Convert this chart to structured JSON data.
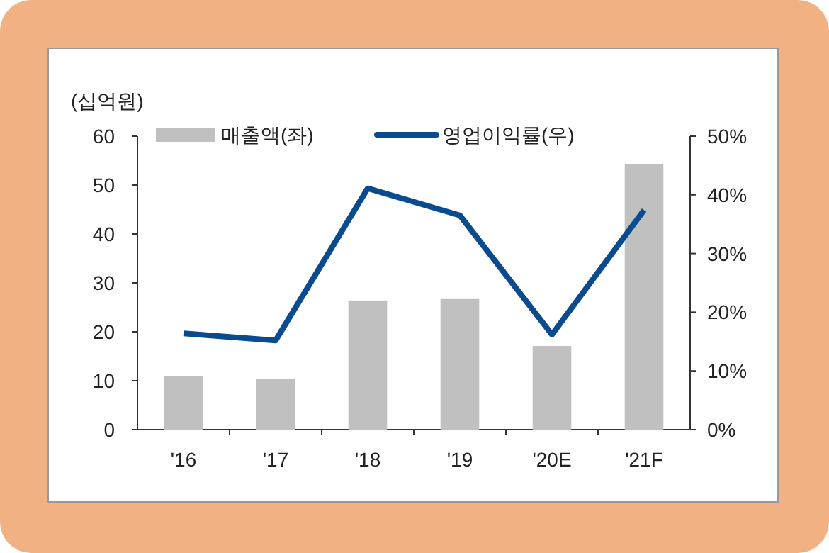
{
  "chart_data": {
    "type": "bar",
    "ylabel": "(십억원)",
    "categories": [
      "'16",
      "'17",
      "'18",
      "'19",
      "'20E",
      "'21F"
    ],
    "series": [
      {
        "name": "매출액(좌)",
        "color": "#c0c0c0",
        "values": [
          11.0,
          10.4,
          26.4,
          26.7,
          17.1,
          54.2
        ]
      },
      {
        "name": "영업이익률(우)",
        "type": "line",
        "axis": "y2",
        "color": "#0a4a8f",
        "values": [
          16.4,
          15.2,
          41.1,
          36.5,
          16.2,
          37.4
        ]
      }
    ],
    "ylim": [
      0,
      60
    ],
    "yticks": [
      0,
      10,
      20,
      30,
      40,
      50,
      60
    ],
    "y2lim": [
      0,
      50
    ],
    "y2ticks": [
      {
        "value": 0,
        "label": "0%"
      },
      {
        "value": 10,
        "label": "10%"
      },
      {
        "value": 20,
        "label": "20%"
      },
      {
        "value": 30,
        "label": "30%"
      },
      {
        "value": 40,
        "label": "40%"
      },
      {
        "value": 50,
        "label": "50%"
      }
    ],
    "legend": "top",
    "grid": false,
    "marker": "none",
    "line_style": "solid"
  }
}
